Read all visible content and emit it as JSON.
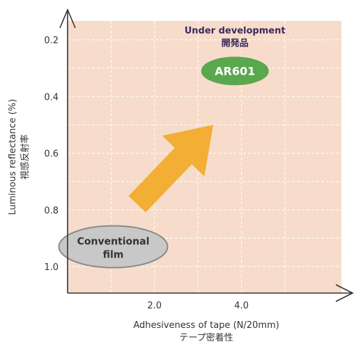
{
  "chart_data": {
    "type": "scatter",
    "xlabel": "Adhesiveness of tape (N/20mm)",
    "xlabel_jp": "テープ密着性",
    "ylabel": "Luminous reflectance (%)",
    "ylabel_jp": "視感反射率",
    "x_ticks": [
      "2.0",
      "4.0"
    ],
    "x_tick_values": [
      2.0,
      4.0
    ],
    "y_ticks": [
      "0.2",
      "0.4",
      "0.6",
      "0.8",
      "1.0"
    ],
    "y_tick_values": [
      0.2,
      0.4,
      0.6,
      0.8,
      1.0
    ],
    "xlim": [
      0,
      6.3
    ],
    "ylim": [
      0.2,
      1.09
    ],
    "y_inverted": true,
    "grid": true,
    "points": [
      {
        "label": "Conventional film",
        "x": 1.05,
        "y": 0.93,
        "color": "#c8c8c8",
        "border": "#8a8a8a",
        "text_color": "#333333"
      },
      {
        "label": "AR601",
        "x": 3.85,
        "y": 0.31,
        "color": "#5aa84e",
        "border": "#5aa84e",
        "text_color": "#ffffff"
      }
    ],
    "annotation": {
      "line1": "Under development",
      "line2": "開発品"
    },
    "arrow": {
      "from": {
        "x": 1.6,
        "y": 0.78
      },
      "to": {
        "x": 3.35,
        "y": 0.5
      },
      "color": "#f2ae35"
    },
    "colors": {
      "plot_bg": "#f7dccb",
      "grid": "#ffffff",
      "axis": "#333333"
    }
  }
}
